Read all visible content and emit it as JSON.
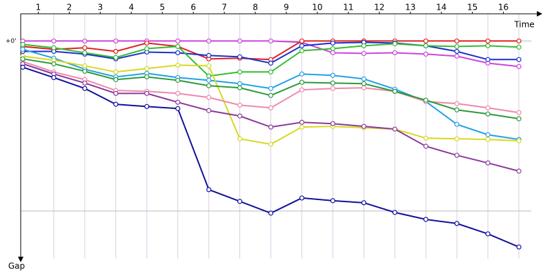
{
  "chart_data": {
    "type": "line",
    "xlabel": "Time",
    "ylabel": "Gap",
    "x": [
      0,
      1,
      2,
      3,
      4,
      5,
      6,
      7,
      8,
      9,
      10,
      11,
      12,
      13,
      14,
      15,
      16
    ],
    "xlim": [
      0,
      16
    ],
    "xticks": [
      {
        "value": 0.5,
        "label": "1"
      },
      {
        "value": 1.5,
        "label": "2"
      },
      {
        "value": 2.5,
        "label": "3"
      },
      {
        "value": 3.5,
        "label": "4"
      },
      {
        "value": 4.5,
        "label": "5"
      },
      {
        "value": 5.5,
        "label": "6"
      },
      {
        "value": 6.5,
        "label": "7"
      },
      {
        "value": 7.5,
        "label": "8"
      },
      {
        "value": 8.5,
        "label": "9"
      },
      {
        "value": 9.5,
        "label": "10"
      },
      {
        "value": 10.5,
        "label": "11"
      },
      {
        "value": 11.5,
        "label": "12"
      },
      {
        "value": 12.5,
        "label": "13"
      },
      {
        "value": 13.5,
        "label": "14"
      },
      {
        "value": 14.5,
        "label": "15"
      },
      {
        "value": 15.5,
        "label": "16"
      }
    ],
    "ylim": [
      -0.16,
      1.26
    ],
    "y_inverted": true,
    "yticks": [
      {
        "value": 0,
        "label": "+0'"
      },
      {
        "value": 1,
        "label": null
      }
    ],
    "grid": true,
    "series": [
      {
        "color": "#cc44dd",
        "values": [
          0,
          0,
          0,
          0,
          0,
          0,
          0,
          0,
          0,
          0.008,
          0.069,
          0.073,
          0.069,
          0.077,
          0.089,
          0.13,
          0.15
        ]
      },
      {
        "color": "#e02020",
        "values": [
          0.032,
          0.049,
          0.04,
          0.061,
          0.012,
          0.032,
          0.105,
          0.101,
          0.109,
          0,
          0,
          0,
          0,
          0,
          0,
          0,
          0
        ]
      },
      {
        "color": "#1a2fcc",
        "values": [
          0.061,
          0.061,
          0.077,
          0.105,
          0.065,
          0.069,
          0.085,
          0.093,
          0.13,
          0.028,
          0.012,
          0.008,
          0.012,
          0.028,
          0.061,
          0.109,
          0.109
        ]
      },
      {
        "color": "#33bb33",
        "values": [
          0.02,
          0.04,
          0.069,
          0.097,
          0.045,
          0.032,
          0.206,
          0.182,
          0.182,
          0.057,
          0.045,
          0.028,
          0.016,
          0.028,
          0.032,
          0.028,
          0.036
        ]
      },
      {
        "color": "#22a0e6",
        "values": [
          0.049,
          0.101,
          0.166,
          0.211,
          0.19,
          0.215,
          0.231,
          0.251,
          0.279,
          0.194,
          0.202,
          0.223,
          0.283,
          0.356,
          0.49,
          0.551,
          0.579
        ]
      },
      {
        "color": "#d8d820",
        "values": [
          0.089,
          0.113,
          0.146,
          0.182,
          0.162,
          0.142,
          0.146,
          0.575,
          0.607,
          0.506,
          0.502,
          0.51,
          0.518,
          0.571,
          0.575,
          0.579,
          0.587
        ]
      },
      {
        "color": "#ee88aa",
        "values": [
          0.121,
          0.182,
          0.227,
          0.291,
          0.296,
          0.308,
          0.332,
          0.377,
          0.393,
          0.287,
          0.279,
          0.275,
          0.296,
          0.356,
          0.368,
          0.393,
          0.421
        ]
      },
      {
        "color": "#2a9a3a",
        "values": [
          0.105,
          0.134,
          0.178,
          0.227,
          0.211,
          0.231,
          0.263,
          0.275,
          0.32,
          0.243,
          0.247,
          0.251,
          0.296,
          0.348,
          0.405,
          0.429,
          0.457
        ]
      },
      {
        "color": "#8a3a9a",
        "values": [
          0.134,
          0.194,
          0.247,
          0.308,
          0.308,
          0.36,
          0.409,
          0.441,
          0.506,
          0.478,
          0.486,
          0.502,
          0.518,
          0.619,
          0.672,
          0.717,
          0.765
        ]
      },
      {
        "color": "#10109a",
        "values": [
          0.154,
          0.215,
          0.279,
          0.372,
          0.385,
          0.397,
          0.874,
          0.943,
          1.012,
          0.923,
          0.939,
          0.951,
          1.008,
          1.049,
          1.073,
          1.134,
          1.211
        ]
      }
    ]
  }
}
